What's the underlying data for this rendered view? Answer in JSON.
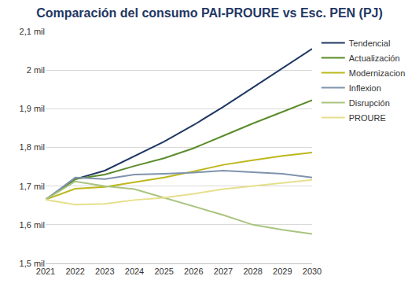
{
  "chart_data": {
    "type": "line",
    "title": "Comparación del consumo PAI-PROURE vs Esc. PEN (PJ)",
    "categories": [
      "2021",
      "2022",
      "2023",
      "2024",
      "2025",
      "2026",
      "2027",
      "2028",
      "2029",
      "2030"
    ],
    "series": [
      {
        "name": "Tendencial",
        "color": "#1f3864",
        "values": [
          1665,
          1718,
          1740,
          1778,
          1815,
          1858,
          1905,
          1955,
          2005,
          2055
        ]
      },
      {
        "name": "Actualización",
        "color": "#5b8c2a",
        "values": [
          1665,
          1718,
          1730,
          1752,
          1772,
          1798,
          1830,
          1862,
          1892,
          1922
        ]
      },
      {
        "name": "Modernizacion",
        "color": "#bdb81c",
        "values": [
          1665,
          1693,
          1698,
          1710,
          1722,
          1738,
          1755,
          1767,
          1778,
          1787
        ]
      },
      {
        "name": "Inflexion",
        "color": "#7f93ad",
        "values": [
          1665,
          1722,
          1718,
          1730,
          1732,
          1735,
          1740,
          1736,
          1732,
          1722
        ]
      },
      {
        "name": "Disrupción",
        "color": "#a9c47f",
        "values": [
          1665,
          1712,
          1700,
          1692,
          1670,
          1647,
          1625,
          1600,
          1587,
          1576
        ]
      },
      {
        "name": "PROURE",
        "color": "#e6df8c",
        "values": [
          1665,
          1652,
          1654,
          1664,
          1670,
          1680,
          1692,
          1700,
          1708,
          1716
        ]
      }
    ],
    "ylim": [
      1500,
      2100
    ],
    "yticks": [
      {
        "value": 1500,
        "label": "1,5 mil"
      },
      {
        "value": 1600,
        "label": "1,6 mil"
      },
      {
        "value": 1700,
        "label": "1,7 mil"
      },
      {
        "value": 1800,
        "label": "1,8 mil"
      },
      {
        "value": 1900,
        "label": "1,9 mil"
      },
      {
        "value": 2000,
        "label": "2 mil"
      },
      {
        "value": 2100,
        "label": "2,1 mil"
      }
    ],
    "grid": true,
    "legend": "right"
  }
}
